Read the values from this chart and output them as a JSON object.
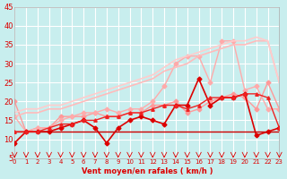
{
  "xlabel": "Vent moyen/en rafales ( km/h )",
  "xlim": [
    0,
    23
  ],
  "ylim": [
    5,
    45
  ],
  "yticks": [
    5,
    10,
    15,
    20,
    25,
    30,
    35,
    40,
    45
  ],
  "xticks": [
    0,
    1,
    2,
    3,
    4,
    5,
    6,
    7,
    8,
    9,
    10,
    11,
    12,
    13,
    14,
    15,
    16,
    17,
    18,
    19,
    20,
    21,
    22,
    23
  ],
  "bg_color": "#c8eeee",
  "grid_color": "#ffffff",
  "lines_light": [
    {
      "x": [
        0,
        1,
        2,
        3,
        4,
        5,
        6,
        7,
        8,
        9,
        10,
        11,
        12,
        13,
        14,
        15,
        16,
        17,
        18,
        19,
        20,
        21,
        22,
        23
      ],
      "y": [
        20,
        12,
        13,
        13,
        16,
        16,
        16,
        17,
        16,
        16,
        17,
        17,
        19,
        19,
        20,
        17,
        18,
        20,
        21,
        22,
        21,
        18,
        25,
        18
      ],
      "color": "#ff9999",
      "lw": 1.0,
      "marker": "D",
      "ms": 2.5
    },
    {
      "x": [
        0,
        1,
        2,
        3,
        4,
        5,
        6,
        7,
        8,
        9,
        10,
        11,
        12,
        13,
        14,
        15,
        16,
        17,
        18,
        19,
        20,
        21,
        22,
        23
      ],
      "y": [
        16,
        12,
        13,
        13,
        15,
        16,
        17,
        17,
        18,
        17,
        18,
        18,
        20,
        24,
        30,
        32,
        32,
        25,
        36,
        36,
        23,
        24,
        18,
        18
      ],
      "color": "#ffaaaa",
      "lw": 1.0,
      "marker": "D",
      "ms": 2.5
    },
    {
      "x": [
        0,
        1,
        2,
        3,
        4,
        5,
        6,
        7,
        8,
        9,
        10,
        11,
        12,
        13,
        14,
        15,
        16,
        17,
        18,
        19,
        20,
        21,
        22,
        23
      ],
      "y": [
        16,
        17,
        17,
        18,
        18,
        19,
        20,
        21,
        22,
        23,
        24,
        25,
        26,
        28,
        29,
        30,
        32,
        33,
        34,
        35,
        35,
        36,
        36,
        25
      ],
      "color": "#ffbbbb",
      "lw": 1.2,
      "marker": null,
      "ms": 0
    },
    {
      "x": [
        0,
        1,
        2,
        3,
        4,
        5,
        6,
        7,
        8,
        9,
        10,
        11,
        12,
        13,
        14,
        15,
        16,
        17,
        18,
        19,
        20,
        21,
        22,
        23
      ],
      "y": [
        17,
        18,
        18,
        19,
        19,
        20,
        21,
        22,
        23,
        24,
        25,
        26,
        27,
        29,
        31,
        32,
        33,
        34,
        35,
        36,
        36,
        37,
        36,
        25
      ],
      "color": "#ffcccc",
      "lw": 1.2,
      "marker": null,
      "ms": 0
    }
  ],
  "lines_dark": [
    {
      "x": [
        0,
        1,
        2,
        3,
        4,
        5,
        6,
        7,
        8,
        9,
        10,
        11,
        12,
        13,
        14,
        15,
        16,
        17,
        18,
        19,
        20,
        21,
        22,
        23
      ],
      "y": [
        9,
        12,
        12,
        12,
        13,
        14,
        15,
        13,
        9,
        13,
        15,
        16,
        15,
        14,
        19,
        19,
        26,
        19,
        21,
        21,
        22,
        11,
        12,
        13
      ],
      "color": "#dd0000",
      "lw": 1.2,
      "marker": "D",
      "ms": 2.5
    },
    {
      "x": [
        0,
        1,
        2,
        3,
        4,
        5,
        6,
        7,
        8,
        9,
        10,
        11,
        12,
        13,
        14,
        15,
        16,
        17,
        18,
        19,
        20,
        21,
        22,
        23
      ],
      "y": [
        12,
        12,
        12,
        12,
        12,
        12,
        12,
        12,
        12,
        12,
        12,
        12,
        12,
        12,
        12,
        12,
        12,
        12,
        12,
        12,
        12,
        12,
        12,
        12
      ],
      "color": "#cc0000",
      "lw": 1.0,
      "marker": null,
      "ms": 0
    },
    {
      "x": [
        0,
        1,
        2,
        3,
        4,
        5,
        6,
        7,
        8,
        9,
        10,
        11,
        12,
        13,
        14,
        15,
        16,
        17,
        18,
        19,
        20,
        21,
        22,
        23
      ],
      "y": [
        12,
        12,
        12,
        13,
        14,
        14,
        15,
        15,
        16,
        16,
        17,
        17,
        18,
        19,
        19,
        18,
        19,
        21,
        21,
        21,
        22,
        22,
        21,
        13
      ],
      "color": "#ee2222",
      "lw": 1.0,
      "marker": "^",
      "ms": 2.5
    }
  ],
  "wind_arrows_x": [
    0,
    1,
    2,
    3,
    4,
    5,
    6,
    7,
    8,
    9,
    10,
    11,
    12,
    13,
    14,
    15,
    16,
    17,
    18,
    19,
    20,
    21,
    22,
    23
  ],
  "arrow_color": "#dd0000"
}
